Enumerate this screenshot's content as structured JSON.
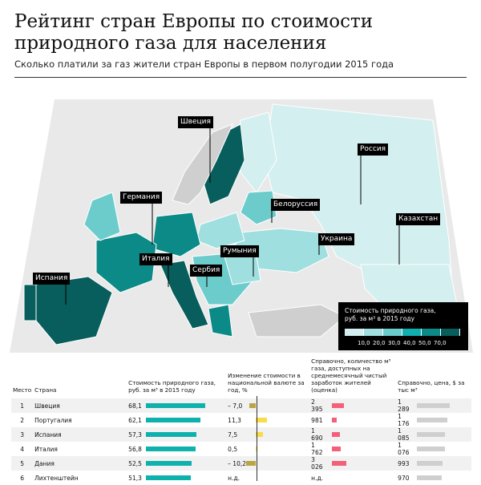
{
  "title": "Рейтинг стран Европы по стоимости природного газа для населения",
  "subtitle": "Сколько платили за газ жители стран Европы в первом полугодии 2015 года",
  "map_labels": [
    "Швеция",
    "Германия",
    "Италия",
    "Испания",
    "Сербия",
    "Румыния",
    "Белоруссия",
    "Украина",
    "Россия",
    "Казахстан"
  ],
  "legend": {
    "title": "Стоимость природного газа, руб. за м³ в 2015 году",
    "ticks": [
      "10,0",
      "20,0",
      "30,0",
      "40,0",
      "50,0",
      "70,0"
    ],
    "colors": [
      "#d4efef",
      "#a0dfdf",
      "#6ccccc",
      "#10b0b0",
      "#0b8a88",
      "#075e5c"
    ]
  },
  "colors": {
    "price": "#0fb1ad",
    "change_pos": "#f9dc4a",
    "change_neg": "#b9a542",
    "count": "#f4607a",
    "usd": "#cfcfcf",
    "land": "#cfcfcf",
    "sea": "#ffffff"
  },
  "chart_data": {
    "type": "table",
    "headers": [
      "Место",
      "Страна",
      "Стоимость природного газа, руб. за м³ в 2015 году",
      "Изменение стоимости в национальной валюте за год, %",
      "Справочно, количество м³ газа, доступных на среднемесячный чистый заработок жителей (оценка)",
      "Справочно, цена, $ за тыс м³"
    ],
    "rows": [
      {
        "rank": "1",
        "country": "Швеция",
        "price": 68.1,
        "price_label": "68,1",
        "change": -7.0,
        "change_label": "– 7,0",
        "count": 2395,
        "count_label": "2 395",
        "usd": 1289,
        "usd_label": "1 289"
      },
      {
        "rank": "2",
        "country": "Португалия",
        "price": 62.1,
        "price_label": "62,1",
        "change": 11.3,
        "change_label": "11,3",
        "count": 981,
        "count_label": "981",
        "usd": 1176,
        "usd_label": "1 176"
      },
      {
        "rank": "3",
        "country": "Испания",
        "price": 57.3,
        "price_label": "57,3",
        "change": 7.5,
        "change_label": "7,5",
        "count": 1690,
        "count_label": "1 690",
        "usd": 1085,
        "usd_label": "1 085"
      },
      {
        "rank": "4",
        "country": "Италия",
        "price": 56.8,
        "price_label": "56,8",
        "change": 0.5,
        "change_label": "0,5",
        "count": 1762,
        "count_label": "1 762",
        "usd": 1076,
        "usd_label": "1 076"
      },
      {
        "rank": "5",
        "country": "Дания",
        "price": 52.5,
        "price_label": "52,5",
        "change": -10.2,
        "change_label": "– 10,2",
        "count": 3026,
        "count_label": "3 026",
        "usd": 993,
        "usd_label": "993"
      },
      {
        "rank": "6",
        "country": "Лихтенштейн",
        "price": 51.3,
        "price_label": "51,3",
        "change": null,
        "change_label": "н.д.",
        "count": null,
        "count_label": "н.д.",
        "usd": 970,
        "usd_label": "970"
      }
    ]
  }
}
